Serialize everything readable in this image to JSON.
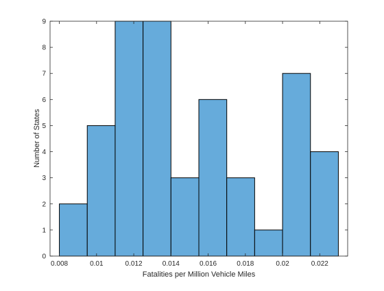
{
  "chart_data": {
    "type": "bar",
    "title": "",
    "xlabel": "Fatalities per Million Vehicle Miles",
    "ylabel": "Number of States",
    "bin_edges": [
      0.008,
      0.0095,
      0.011,
      0.0125,
      0.014,
      0.0155,
      0.017,
      0.0185,
      0.02,
      0.0215,
      0.023
    ],
    "values": [
      2,
      5,
      9,
      9,
      3,
      6,
      3,
      1,
      7,
      4
    ],
    "xlim": [
      0.0075,
      0.0235
    ],
    "ylim": [
      0,
      9
    ],
    "xticks": [
      0.008,
      0.01,
      0.012,
      0.014,
      0.016,
      0.018,
      0.02,
      0.022
    ],
    "xtick_labels": [
      "0.008",
      "0.01",
      "0.012",
      "0.014",
      "0.016",
      "0.018",
      "0.02",
      "0.022"
    ],
    "yticks": [
      0,
      1,
      2,
      3,
      4,
      5,
      6,
      7,
      8,
      9
    ],
    "ytick_labels": [
      "0",
      "1",
      "2",
      "3",
      "4",
      "5",
      "6",
      "7",
      "8",
      "9"
    ],
    "grid": false,
    "legend": "none",
    "bar_color": "#66abdb",
    "edge_color": "#000000"
  }
}
